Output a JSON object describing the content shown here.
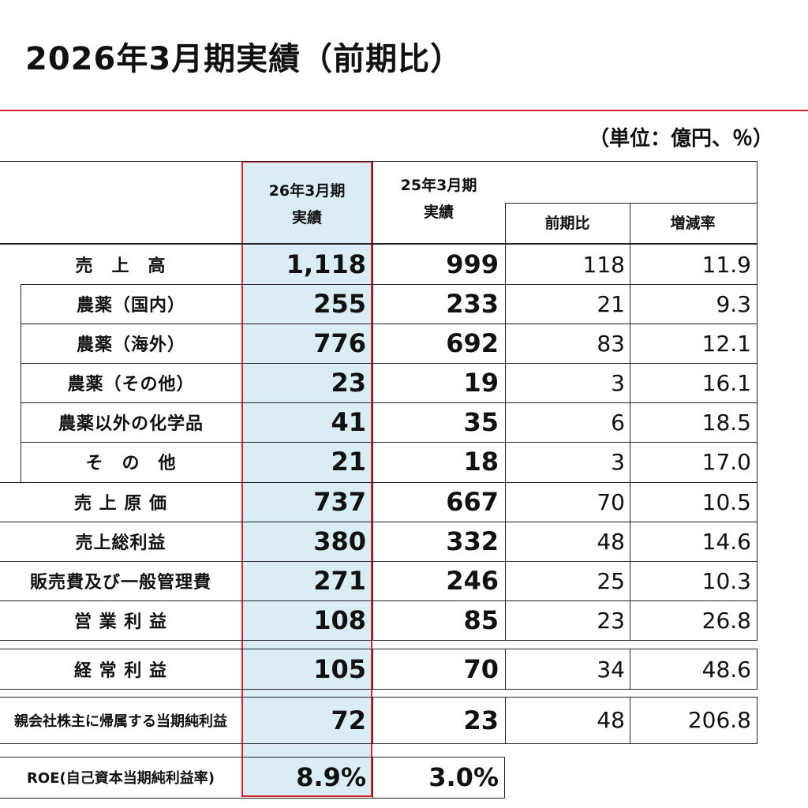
{
  "title": "2026年3月期実績（前期比）",
  "unit_note": "（単位：億円、％）",
  "header": {
    "col_current": [
      "26年3月期",
      "実績"
    ],
    "col_prior": [
      "25年3月期",
      "実績"
    ],
    "col_diff": "前期比",
    "col_rate": "増減率"
  },
  "rows": [
    {
      "label": "売　上　高",
      "current": "1,118",
      "prior": "999",
      "diff": "118",
      "rate": "11.9"
    },
    {
      "label": "農薬（国内）",
      "current": "255",
      "prior": "233",
      "diff": "21",
      "rate": "9.3"
    },
    {
      "label": "農薬（海外）",
      "current": "776",
      "prior": "692",
      "diff": "83",
      "rate": "12.1"
    },
    {
      "label": "農薬（その他）",
      "current": "23",
      "prior": "19",
      "diff": "3",
      "rate": "16.1"
    },
    {
      "label": "農薬以外の化学品",
      "current": "41",
      "prior": "35",
      "diff": "6",
      "rate": "18.5"
    },
    {
      "label": "そ　の　他",
      "current": "21",
      "prior": "18",
      "diff": "3",
      "rate": "17.0"
    },
    {
      "label": "売 上 原 価",
      "current": "737",
      "prior": "667",
      "diff": "70",
      "rate": "10.5"
    },
    {
      "label": "売上総利益",
      "current": "380",
      "prior": "332",
      "diff": "48",
      "rate": "14.6"
    },
    {
      "label": "販売費及び一般管理費",
      "current": "271",
      "prior": "246",
      "diff": "25",
      "rate": "10.3"
    },
    {
      "label": "営 業 利 益",
      "current": "108",
      "prior": "85",
      "diff": "23",
      "rate": "26.8"
    },
    {
      "label": "経 常 利 益",
      "current": "105",
      "prior": "70",
      "diff": "34",
      "rate": "48.6"
    },
    {
      "label": "親会社株主に帰属する当期純利益",
      "current": "72",
      "prior": "23",
      "diff": "48",
      "rate": "206.8"
    },
    {
      "label": "ROE(自己資本当期純利益率)",
      "current": "8.9%",
      "prior": "3.0%"
    }
  ]
}
